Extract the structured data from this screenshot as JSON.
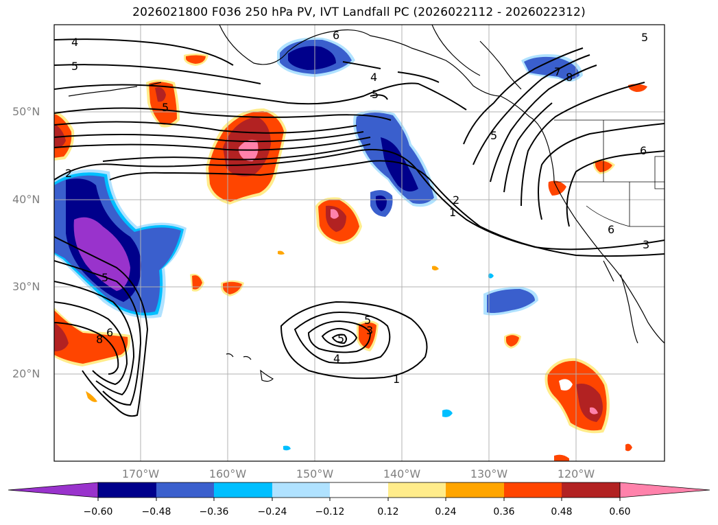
{
  "title": "2026021800 F036 250 hPa PV, IVT Landfall PC (2026022112 - 2026022312)",
  "map": {
    "lat_labels": [
      "50°N",
      "40°N",
      "30°N",
      "20°N"
    ],
    "lon_labels": [
      "170°W",
      "160°W",
      "150°W",
      "140°W",
      "130°W",
      "120°W"
    ],
    "contour_labels": [
      "4",
      "5",
      "6",
      "4",
      "5",
      "5",
      "2",
      "1",
      "5",
      "6",
      "8",
      "7",
      "2",
      "5",
      "6",
      "3",
      "5",
      "3",
      "5",
      "4",
      "1",
      "8",
      "6",
      "5"
    ],
    "colors": {
      "land_border": "#000000",
      "grid": "#b0b0b0",
      "purple": "#9933cc",
      "navy": "#00008b",
      "blue": "#3a5fcd",
      "sky": "#00bfff",
      "lightblue": "#b0e2ff",
      "yellow": "#ffec8b",
      "orange": "#ffa500",
      "redorange": "#ff4500",
      "darkred": "#b22222",
      "pink": "#ff82ab"
    }
  },
  "colorbar": {
    "ticks": [
      "−0.60",
      "−0.48",
      "−0.36",
      "−0.24",
      "−0.12",
      "0.12",
      "0.24",
      "0.36",
      "0.48",
      "0.60"
    ],
    "colors": [
      "#9933cc",
      "#00008b",
      "#3a5fcd",
      "#00bfff",
      "#b0e2ff",
      "#ffffff",
      "#ffec8b",
      "#ffa500",
      "#ff4500",
      "#b22222",
      "#ff82ab"
    ]
  }
}
